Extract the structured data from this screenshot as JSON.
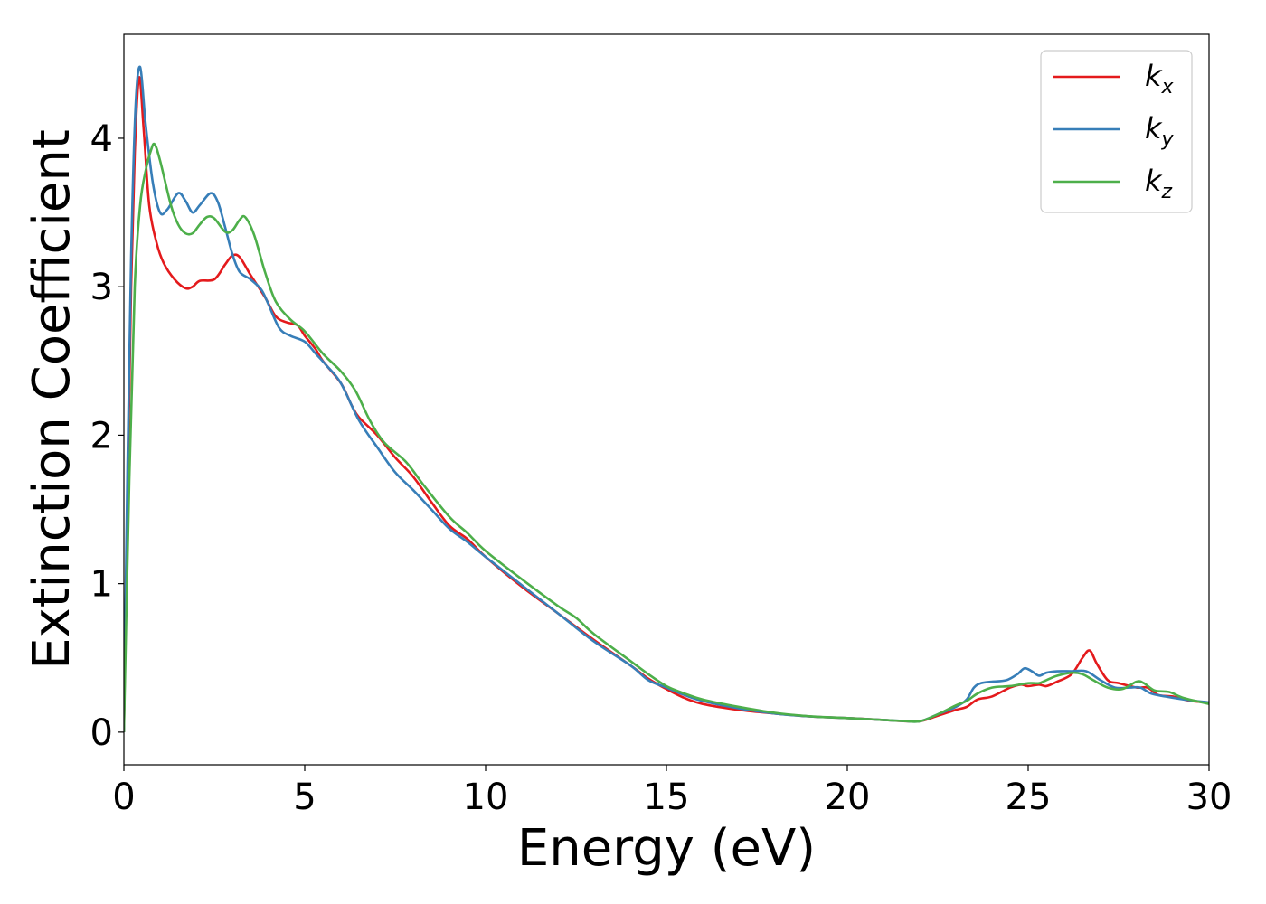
{
  "chart_data": {
    "type": "line",
    "xlabel": "Energy (eV)",
    "ylabel": "Extinction Coefficient",
    "xlim": [
      0,
      30
    ],
    "ylim": [
      -0.22,
      4.7
    ],
    "xticks": [
      0,
      5,
      10,
      15,
      20,
      25,
      30
    ],
    "yticks": [
      0,
      1,
      2,
      3,
      4
    ],
    "grid": false,
    "legend_position": "top-right",
    "series": [
      {
        "name": "k_x",
        "label_base": "k",
        "label_sub": "x",
        "color": "#e41a1c",
        "points": [
          [
            0,
            0
          ],
          [
            0.1,
            1.6
          ],
          [
            0.2,
            3.0
          ],
          [
            0.3,
            3.9
          ],
          [
            0.42,
            4.41
          ],
          [
            0.55,
            4.05
          ],
          [
            0.7,
            3.55
          ],
          [
            0.9,
            3.3
          ],
          [
            1.1,
            3.16
          ],
          [
            1.4,
            3.05
          ],
          [
            1.7,
            2.99
          ],
          [
            1.9,
            3.0
          ],
          [
            2.1,
            3.04
          ],
          [
            2.5,
            3.05
          ],
          [
            2.8,
            3.15
          ],
          [
            3.0,
            3.21
          ],
          [
            3.2,
            3.2
          ],
          [
            3.5,
            3.08
          ],
          [
            3.9,
            2.93
          ],
          [
            4.2,
            2.8
          ],
          [
            4.5,
            2.76
          ],
          [
            4.8,
            2.74
          ],
          [
            5.0,
            2.67
          ],
          [
            5.3,
            2.58
          ],
          [
            5.5,
            2.5
          ],
          [
            6.0,
            2.35
          ],
          [
            6.3,
            2.2
          ],
          [
            6.5,
            2.12
          ],
          [
            7.0,
            2.0
          ],
          [
            7.5,
            1.85
          ],
          [
            8.0,
            1.72
          ],
          [
            8.5,
            1.55
          ],
          [
            9.0,
            1.39
          ],
          [
            9.5,
            1.3
          ],
          [
            10.0,
            1.18
          ],
          [
            11.0,
            0.98
          ],
          [
            12.0,
            0.8
          ],
          [
            13.0,
            0.62
          ],
          [
            14.0,
            0.45
          ],
          [
            14.5,
            0.36
          ],
          [
            15.0,
            0.29
          ],
          [
            15.5,
            0.23
          ],
          [
            16.0,
            0.19
          ],
          [
            17.0,
            0.15
          ],
          [
            18.0,
            0.125
          ],
          [
            19.0,
            0.105
          ],
          [
            20.0,
            0.095
          ],
          [
            21.0,
            0.082
          ],
          [
            21.5,
            0.075
          ],
          [
            22.0,
            0.073
          ],
          [
            22.5,
            0.11
          ],
          [
            23.0,
            0.15
          ],
          [
            23.3,
            0.17
          ],
          [
            23.6,
            0.22
          ],
          [
            24.0,
            0.24
          ],
          [
            24.5,
            0.3
          ],
          [
            24.8,
            0.32
          ],
          [
            25.0,
            0.31
          ],
          [
            25.3,
            0.32
          ],
          [
            25.5,
            0.31
          ],
          [
            25.8,
            0.34
          ],
          [
            26.2,
            0.39
          ],
          [
            26.5,
            0.5
          ],
          [
            26.7,
            0.55
          ],
          [
            26.9,
            0.46
          ],
          [
            27.2,
            0.35
          ],
          [
            27.5,
            0.33
          ],
          [
            28.0,
            0.3
          ],
          [
            28.3,
            0.3
          ],
          [
            28.6,
            0.25
          ],
          [
            29.0,
            0.24
          ],
          [
            29.5,
            0.21
          ],
          [
            30.0,
            0.2
          ]
        ]
      },
      {
        "name": "k_y",
        "label_base": "k",
        "label_sub": "y",
        "color": "#377eb8",
        "points": [
          [
            0,
            0
          ],
          [
            0.1,
            1.8
          ],
          [
            0.2,
            3.2
          ],
          [
            0.32,
            4.2
          ],
          [
            0.45,
            4.48
          ],
          [
            0.6,
            4.1
          ],
          [
            0.8,
            3.7
          ],
          [
            1.0,
            3.5
          ],
          [
            1.2,
            3.52
          ],
          [
            1.5,
            3.63
          ],
          [
            1.7,
            3.58
          ],
          [
            1.9,
            3.5
          ],
          [
            2.1,
            3.55
          ],
          [
            2.4,
            3.63
          ],
          [
            2.6,
            3.57
          ],
          [
            2.8,
            3.4
          ],
          [
            3.0,
            3.22
          ],
          [
            3.2,
            3.1
          ],
          [
            3.5,
            3.05
          ],
          [
            3.8,
            2.98
          ],
          [
            4.0,
            2.88
          ],
          [
            4.3,
            2.72
          ],
          [
            4.6,
            2.67
          ],
          [
            5.0,
            2.63
          ],
          [
            5.3,
            2.55
          ],
          [
            5.6,
            2.47
          ],
          [
            6.0,
            2.35
          ],
          [
            6.5,
            2.1
          ],
          [
            7.0,
            1.92
          ],
          [
            7.5,
            1.75
          ],
          [
            8.0,
            1.63
          ],
          [
            8.5,
            1.5
          ],
          [
            9.0,
            1.37
          ],
          [
            9.5,
            1.28
          ],
          [
            10.0,
            1.18
          ],
          [
            11.0,
            0.99
          ],
          [
            12.0,
            0.8
          ],
          [
            13.0,
            0.61
          ],
          [
            14.0,
            0.45
          ],
          [
            14.5,
            0.35
          ],
          [
            15.0,
            0.3
          ],
          [
            15.5,
            0.25
          ],
          [
            16.0,
            0.21
          ],
          [
            17.0,
            0.16
          ],
          [
            18.0,
            0.125
          ],
          [
            19.0,
            0.105
          ],
          [
            20.0,
            0.095
          ],
          [
            21.0,
            0.082
          ],
          [
            21.5,
            0.076
          ],
          [
            22.0,
            0.073
          ],
          [
            22.5,
            0.12
          ],
          [
            23.0,
            0.17
          ],
          [
            23.3,
            0.22
          ],
          [
            23.5,
            0.3
          ],
          [
            23.7,
            0.33
          ],
          [
            24.0,
            0.34
          ],
          [
            24.4,
            0.35
          ],
          [
            24.7,
            0.39
          ],
          [
            24.9,
            0.43
          ],
          [
            25.1,
            0.41
          ],
          [
            25.3,
            0.38
          ],
          [
            25.5,
            0.4
          ],
          [
            25.8,
            0.41
          ],
          [
            26.2,
            0.41
          ],
          [
            26.6,
            0.41
          ],
          [
            27.0,
            0.35
          ],
          [
            27.4,
            0.3
          ],
          [
            27.8,
            0.3
          ],
          [
            28.1,
            0.3
          ],
          [
            28.4,
            0.26
          ],
          [
            28.8,
            0.24
          ],
          [
            29.3,
            0.22
          ],
          [
            30.0,
            0.2
          ]
        ]
      },
      {
        "name": "k_z",
        "label_base": "k",
        "label_sub": "z",
        "color": "#4daf4a",
        "points": [
          [
            0,
            0
          ],
          [
            0.15,
            1.7
          ],
          [
            0.3,
            3.0
          ],
          [
            0.45,
            3.55
          ],
          [
            0.6,
            3.78
          ],
          [
            0.75,
            3.92
          ],
          [
            0.85,
            3.96
          ],
          [
            1.0,
            3.85
          ],
          [
            1.3,
            3.55
          ],
          [
            1.5,
            3.42
          ],
          [
            1.7,
            3.36
          ],
          [
            1.9,
            3.36
          ],
          [
            2.1,
            3.42
          ],
          [
            2.3,
            3.47
          ],
          [
            2.5,
            3.46
          ],
          [
            2.8,
            3.37
          ],
          [
            3.0,
            3.38
          ],
          [
            3.2,
            3.45
          ],
          [
            3.35,
            3.47
          ],
          [
            3.6,
            3.35
          ],
          [
            3.9,
            3.1
          ],
          [
            4.2,
            2.9
          ],
          [
            4.6,
            2.78
          ],
          [
            5.0,
            2.7
          ],
          [
            5.5,
            2.55
          ],
          [
            6.0,
            2.43
          ],
          [
            6.4,
            2.3
          ],
          [
            6.8,
            2.1
          ],
          [
            7.2,
            1.95
          ],
          [
            7.8,
            1.82
          ],
          [
            8.3,
            1.66
          ],
          [
            9.0,
            1.45
          ],
          [
            9.5,
            1.34
          ],
          [
            10.0,
            1.22
          ],
          [
            11.0,
            1.03
          ],
          [
            12.0,
            0.85
          ],
          [
            12.5,
            0.77
          ],
          [
            13.0,
            0.66
          ],
          [
            14.0,
            0.48
          ],
          [
            14.5,
            0.39
          ],
          [
            15.0,
            0.31
          ],
          [
            15.5,
            0.26
          ],
          [
            16.0,
            0.22
          ],
          [
            17.0,
            0.17
          ],
          [
            18.0,
            0.13
          ],
          [
            19.0,
            0.106
          ],
          [
            20.0,
            0.095
          ],
          [
            21.0,
            0.082
          ],
          [
            21.5,
            0.076
          ],
          [
            22.0,
            0.073
          ],
          [
            22.5,
            0.12
          ],
          [
            23.0,
            0.18
          ],
          [
            23.3,
            0.21
          ],
          [
            23.6,
            0.26
          ],
          [
            24.0,
            0.3
          ],
          [
            24.5,
            0.31
          ],
          [
            25.0,
            0.33
          ],
          [
            25.3,
            0.33
          ],
          [
            25.5,
            0.35
          ],
          [
            25.8,
            0.38
          ],
          [
            26.2,
            0.4
          ],
          [
            26.5,
            0.39
          ],
          [
            26.8,
            0.35
          ],
          [
            27.2,
            0.3
          ],
          [
            27.6,
            0.29
          ],
          [
            28.0,
            0.34
          ],
          [
            28.2,
            0.33
          ],
          [
            28.5,
            0.28
          ],
          [
            28.9,
            0.27
          ],
          [
            29.3,
            0.23
          ],
          [
            30.0,
            0.19
          ]
        ]
      }
    ]
  }
}
